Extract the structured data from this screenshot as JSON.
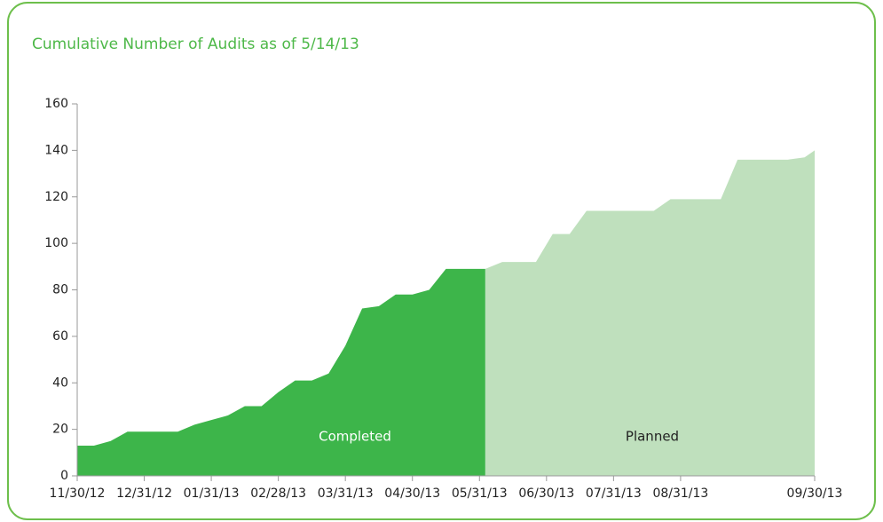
{
  "chart_data": {
    "type": "area",
    "title": "Cumulative Number of Audits as of 5/14/13",
    "xlim": [
      0,
      44
    ],
    "ylim": [
      0,
      160
    ],
    "yticks": [
      0,
      20,
      40,
      60,
      80,
      100,
      120,
      140,
      160
    ],
    "xticks": [
      {
        "value": 0,
        "label": "11/30/12"
      },
      {
        "value": 4,
        "label": "12/31/12"
      },
      {
        "value": 8,
        "label": "01/31/13"
      },
      {
        "value": 12,
        "label": "02/28/13"
      },
      {
        "value": 16,
        "label": "03/31/13"
      },
      {
        "value": 20,
        "label": "04/30/13"
      },
      {
        "value": 24,
        "label": "05/31/13"
      },
      {
        "value": 28,
        "label": "06/30/13"
      },
      {
        "value": 32,
        "label": "07/31/13"
      },
      {
        "value": 36,
        "label": "08/31/13"
      },
      {
        "value": 44,
        "label": "09/30/13"
      }
    ],
    "series": [
      {
        "name": "Completed",
        "color": "#3db54a",
        "x": [
          0,
          1,
          2,
          3,
          4,
          5,
          6,
          7,
          8,
          9,
          10,
          11,
          12,
          13,
          14,
          15,
          16,
          17,
          18,
          19,
          20,
          21,
          22,
          23,
          24,
          24.35
        ],
        "values": [
          13,
          13,
          15,
          19,
          19,
          19,
          19,
          22,
          24,
          26,
          30,
          30,
          36,
          41,
          41,
          44,
          56,
          72,
          73,
          78,
          78,
          80,
          89,
          89,
          89,
          89
        ]
      },
      {
        "name": "Planned",
        "color": "#bfe0bd",
        "x": [
          24.35,
          25.36,
          26.36,
          27.37,
          28.37,
          29.38,
          30.39,
          31.4,
          32.4,
          33.4,
          34.4,
          35.4,
          36.4,
          37.4,
          38.4,
          39.4,
          40.4,
          41.4,
          42.4,
          43.4,
          44
        ],
        "values": [
          89,
          92,
          92,
          92,
          104,
          104,
          114,
          114,
          114,
          114,
          114,
          119,
          119,
          119,
          119,
          136,
          136,
          136,
          136,
          137,
          140
        ]
      }
    ]
  }
}
